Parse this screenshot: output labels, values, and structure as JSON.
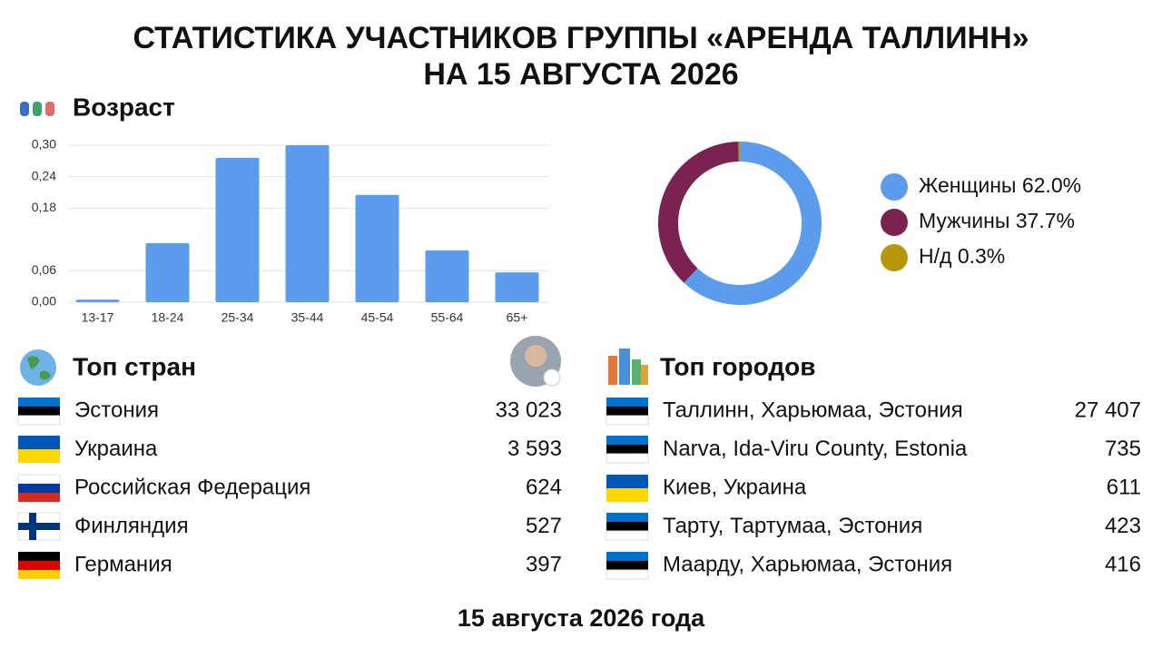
{
  "header": {
    "title": [
      "СТАТИСТИКА УЧАСТНИКОВ ГРУППЫ «АРЕНДА ТАЛЛИНН»",
      "НА 15 АВГУСТА 2026"
    ]
  },
  "chart_data": [
    {
      "type": "bar",
      "title": "Возраст",
      "categories": [
        "13-17",
        "18-24",
        "25-34",
        "35-44",
        "45-54",
        "55-64",
        "65+"
      ],
      "values": [
        0.005,
        0.113,
        0.276,
        0.3,
        0.205,
        0.099,
        0.057
      ],
      "color": "#5b9cec",
      "ylim": [
        0,
        0.3
      ],
      "yticks": [
        {
          "value": 0,
          "label": "0,00"
        },
        {
          "value": 0.06,
          "label": "0,06"
        },
        {
          "value": 0.18,
          "label": "0,18"
        },
        {
          "value": 0.24,
          "label": "0,24"
        },
        {
          "value": 0.3,
          "label": "0,30"
        }
      ],
      "grid": true
    },
    {
      "type": "pie",
      "categories": [
        "Женщины",
        "Мужчины",
        "Н/д"
      ],
      "values": [
        62.0,
        37.7,
        0.3
      ],
      "value_labels": [
        "62.0%",
        "37.7%",
        "0.3%"
      ],
      "colors": [
        "#5b9cec",
        "#7b2350",
        "#b8960c"
      ],
      "donut": true
    }
  ],
  "countries": {
    "title": "Топ стран",
    "rows": [
      [
        "Эстония",
        "33 023"
      ],
      [
        "Украина",
        "3 593"
      ],
      [
        "Российская Федерация",
        "624"
      ],
      [
        "Финляндия",
        "527"
      ],
      [
        "Германия",
        "397"
      ]
    ]
  },
  "cities": {
    "title": "Топ городов",
    "rows": [
      [
        "Таллинн, Харьюмаа, Эстония",
        "27 407"
      ],
      [
        "Narva, Ida-Viru County, Estonia",
        "735"
      ],
      [
        "Киев, Украина",
        "611"
      ],
      [
        "Тарту, Тартумаа, Эстония",
        "423"
      ],
      [
        "Маарду, Харьюмаа, Эстония",
        "416"
      ]
    ]
  },
  "footer": "15 августа 2026 года"
}
